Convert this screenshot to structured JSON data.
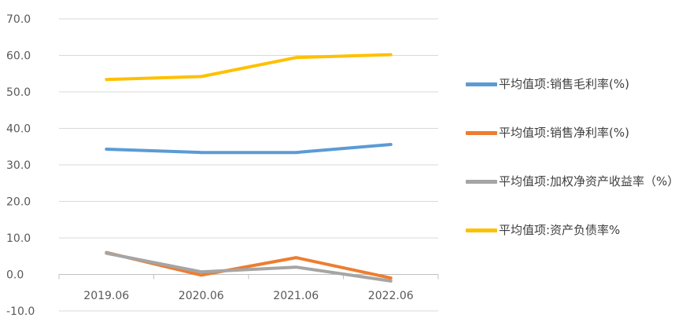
{
  "chart_data": {
    "type": "line",
    "categories": [
      "2019.06",
      "2020.06",
      "2021.06",
      "2022.06"
    ],
    "ylim": [
      -10,
      70
    ],
    "yticks": [
      "70.0",
      "60.0",
      "50.0",
      "40.0",
      "30.0",
      "20.0",
      "10.0",
      "0.0",
      "-10.0"
    ],
    "ytick_values": [
      70,
      60,
      50,
      40,
      30,
      20,
      10,
      0,
      -10
    ],
    "grid": true,
    "legend_position": "right",
    "series": [
      {
        "name": "平均值项:销售毛利率(%)",
        "color": "#5B9BD5",
        "values": [
          34.3,
          33.4,
          33.4,
          35.6
        ]
      },
      {
        "name": "平均值项:销售净利率(%)",
        "color": "#ED7D31",
        "values": [
          6.0,
          -0.2,
          4.6,
          -1.0
        ]
      },
      {
        "name": "平均值项:加权净资产收益率（%）",
        "color": "#A5A5A5",
        "values": [
          5.8,
          0.7,
          2.0,
          -1.8
        ]
      },
      {
        "name": "平均值项:资产负债率%",
        "color": "#FFC000",
        "values": [
          53.4,
          54.2,
          59.4,
          60.2
        ]
      }
    ]
  }
}
